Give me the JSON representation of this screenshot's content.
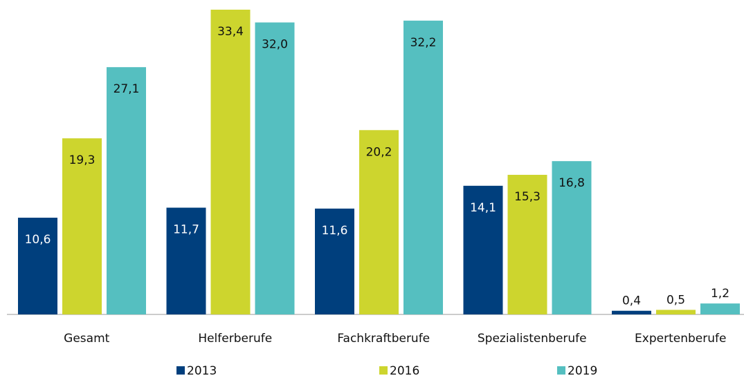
{
  "chart_data": {
    "type": "bar",
    "categories": [
      "Gesamt",
      "Helferberufe",
      "Fachkraftberufe",
      "Spezialistenberufe",
      "Expertenberufe"
    ],
    "series": [
      {
        "name": "2013",
        "color": "#003f7d",
        "values": [
          10.6,
          11.7,
          11.6,
          14.1,
          0.4
        ],
        "value_labels": [
          "10,6",
          "11,7",
          "11,6",
          "14,1",
          "0,4"
        ]
      },
      {
        "name": "2016",
        "color": "#cdd52e",
        "values": [
          19.3,
          33.4,
          20.2,
          15.3,
          0.5
        ],
        "value_labels": [
          "19,3",
          "33,4",
          "20,2",
          "15,3",
          "0,5"
        ]
      },
      {
        "name": "2019",
        "color": "#55bfc0",
        "values": [
          27.1,
          32.0,
          32.2,
          16.8,
          1.2
        ],
        "value_labels": [
          "27,1",
          "32,0",
          "32,2",
          "16,8",
          "1,2"
        ]
      }
    ],
    "legend": "bottom"
  }
}
